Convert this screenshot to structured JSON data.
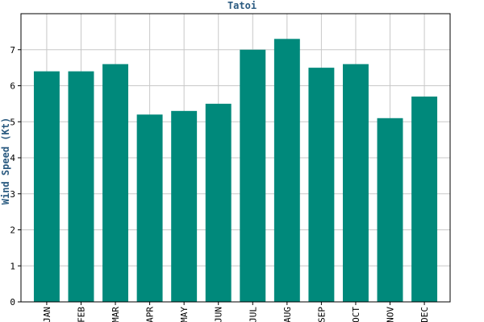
{
  "chart_data": {
    "type": "bar",
    "title": "Tatoi",
    "xlabel": "",
    "ylabel": "Wind Speed (Kt)",
    "categories": [
      "JAN",
      "FEB",
      "MAR",
      "APR",
      "MAY",
      "JUN",
      "JUL",
      "AUG",
      "SEP",
      "OCT",
      "NOV",
      "DEC"
    ],
    "values": [
      6.4,
      6.4,
      6.6,
      5.2,
      5.3,
      5.5,
      7.0,
      7.3,
      6.5,
      6.6,
      5.1,
      5.7
    ],
    "ylim": [
      0,
      8
    ],
    "yticks": [
      0,
      1,
      2,
      3,
      4,
      5,
      6,
      7
    ],
    "grid": true
  },
  "colors": {
    "bar": "#00897b",
    "title": "#2a5a80",
    "grid": "#c8c8c8",
    "axis": "#000000"
  }
}
